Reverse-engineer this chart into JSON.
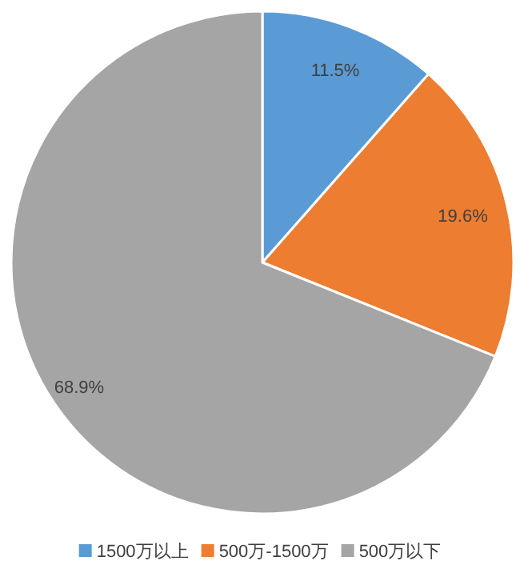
{
  "chart_data": {
    "type": "pie",
    "categories": [
      "1500万以上",
      "500万-1500万",
      "500万以下"
    ],
    "values": [
      11.5,
      19.6,
      68.9
    ],
    "colors": [
      "#5b9bd5",
      "#ed7d31",
      "#a5a5a5"
    ],
    "value_labels": [
      "11.5%",
      "19.6%",
      "68.9%"
    ],
    "legend": "bottom"
  }
}
